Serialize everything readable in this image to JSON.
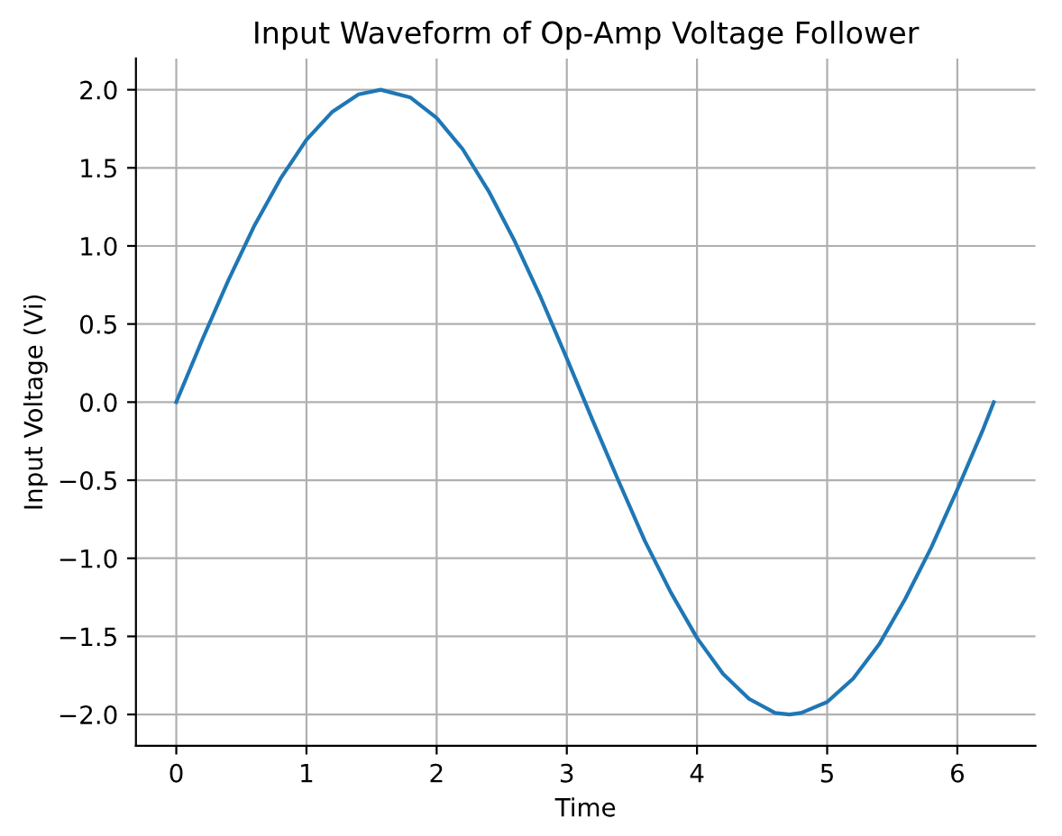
{
  "chart_data": {
    "type": "line",
    "title": "Input Waveform of Op-Amp Voltage Follower",
    "xlabel": "Time",
    "ylabel": "Input Voltage (Vi)",
    "series": [
      {
        "color": "#1f77b4",
        "x": [
          0,
          0.2,
          0.4,
          0.6,
          0.8,
          1.0,
          1.2,
          1.4,
          1.57,
          1.8,
          2.0,
          2.2,
          2.4,
          2.6,
          2.8,
          3.0,
          3.2,
          3.4,
          3.6,
          3.8,
          4.0,
          4.2,
          4.4,
          4.6,
          4.71,
          4.8,
          5.0,
          5.2,
          5.4,
          5.6,
          5.8,
          6.0,
          6.2,
          6.28
        ],
        "values": [
          0,
          0.4,
          0.78,
          1.13,
          1.43,
          1.68,
          1.86,
          1.97,
          2.0,
          1.95,
          1.82,
          1.62,
          1.35,
          1.03,
          0.67,
          0.28,
          -0.12,
          -0.51,
          -0.89,
          -1.22,
          -1.51,
          -1.74,
          -1.9,
          -1.99,
          -2.0,
          -1.99,
          -1.92,
          -1.77,
          -1.55,
          -1.26,
          -0.93,
          -0.56,
          -0.17,
          0
        ]
      }
    ],
    "xlim": [
      -0.31,
      6.6
    ],
    "ylim": [
      -2.2,
      2.2
    ],
    "xticks": [
      0,
      1,
      2,
      3,
      4,
      5,
      6
    ],
    "yticks": [
      {
        "value": -2,
        "label": "−2.0"
      },
      {
        "value": -1.5,
        "label": "−1.5"
      },
      {
        "value": -1,
        "label": "−1.0"
      },
      {
        "value": -0.5,
        "label": "−0.5"
      },
      {
        "value": 0,
        "label": "0.0"
      },
      {
        "value": 0.5,
        "label": "0.5"
      },
      {
        "value": 1,
        "label": "1.0"
      },
      {
        "value": 1.5,
        "label": "1.5"
      },
      {
        "value": 2,
        "label": "2.0"
      }
    ],
    "grid": true,
    "line_style": "solid"
  }
}
